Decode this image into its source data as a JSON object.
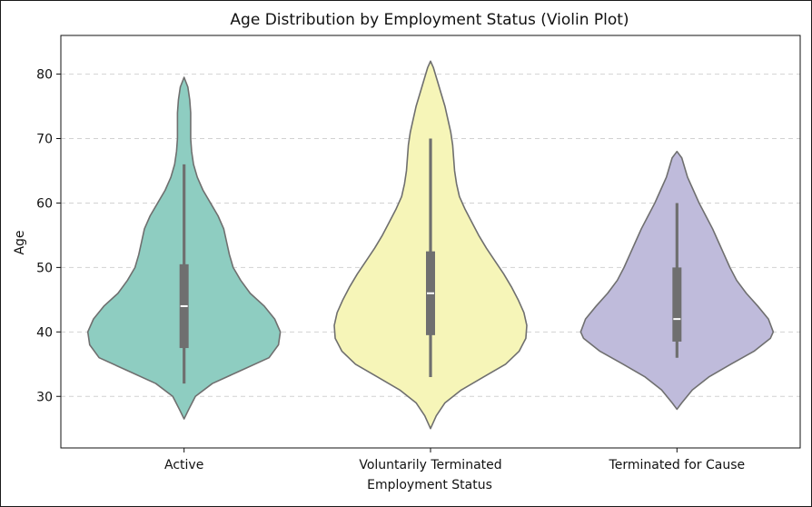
{
  "chart_data": {
    "type": "violin",
    "title": "Age Distribution by Employment Status (Violin Plot)",
    "xlabel": "Employment Status",
    "ylabel": "Age",
    "ylim": [
      22,
      86
    ],
    "y_ticks": [
      30,
      40,
      50,
      60,
      70,
      80
    ],
    "grid": "y-dashed",
    "categories": [
      "Active",
      "Voluntarily Terminated",
      "Terminated for Cause"
    ],
    "colors": [
      "#8ecdc1",
      "#f6f5b8",
      "#bfbbdb"
    ],
    "series": [
      {
        "min": 26.5,
        "max": 79.5,
        "whisker_low": 32,
        "whisker_high": 66,
        "q1": 37.5,
        "median": 44,
        "q3": 50.5,
        "density": [
          [
            26.5,
            0.0
          ],
          [
            28,
            0.05
          ],
          [
            30,
            0.12
          ],
          [
            32,
            0.3
          ],
          [
            34,
            0.6
          ],
          [
            36,
            0.9
          ],
          [
            38,
            1.0
          ],
          [
            40,
            1.02
          ],
          [
            42,
            0.96
          ],
          [
            44,
            0.85
          ],
          [
            46,
            0.7
          ],
          [
            48,
            0.6
          ],
          [
            50,
            0.52
          ],
          [
            52,
            0.48
          ],
          [
            54,
            0.45
          ],
          [
            56,
            0.42
          ],
          [
            58,
            0.36
          ],
          [
            60,
            0.28
          ],
          [
            62,
            0.2
          ],
          [
            64,
            0.14
          ],
          [
            66,
            0.1
          ],
          [
            68,
            0.08
          ],
          [
            70,
            0.07
          ],
          [
            72,
            0.07
          ],
          [
            74,
            0.07
          ],
          [
            76,
            0.06
          ],
          [
            78,
            0.04
          ],
          [
            79.5,
            0.0
          ]
        ]
      },
      {
        "min": 25,
        "max": 82,
        "whisker_low": 33,
        "whisker_high": 70,
        "q1": 39.5,
        "median": 46,
        "q3": 52.5,
        "density": [
          [
            25,
            0.0
          ],
          [
            27,
            0.06
          ],
          [
            29,
            0.15
          ],
          [
            31,
            0.32
          ],
          [
            33,
            0.55
          ],
          [
            35,
            0.78
          ],
          [
            37,
            0.92
          ],
          [
            39,
            0.99
          ],
          [
            41,
            1.0
          ],
          [
            43,
            0.97
          ],
          [
            45,
            0.91
          ],
          [
            47,
            0.84
          ],
          [
            49,
            0.76
          ],
          [
            51,
            0.67
          ],
          [
            53,
            0.58
          ],
          [
            55,
            0.5
          ],
          [
            57,
            0.43
          ],
          [
            59,
            0.36
          ],
          [
            61,
            0.3
          ],
          [
            63,
            0.27
          ],
          [
            65,
            0.25
          ],
          [
            67,
            0.24
          ],
          [
            69,
            0.23
          ],
          [
            71,
            0.21
          ],
          [
            73,
            0.18
          ],
          [
            75,
            0.15
          ],
          [
            77,
            0.11
          ],
          [
            79,
            0.07
          ],
          [
            81,
            0.03
          ],
          [
            82,
            0.0
          ]
        ]
      },
      {
        "min": 28,
        "max": 68,
        "whisker_low": 36,
        "whisker_high": 60,
        "q1": 38.5,
        "median": 42,
        "q3": 50,
        "density": [
          [
            28,
            0.0
          ],
          [
            29,
            0.05
          ],
          [
            31,
            0.16
          ],
          [
            33,
            0.33
          ],
          [
            35,
            0.56
          ],
          [
            37,
            0.8
          ],
          [
            39,
            0.97
          ],
          [
            40,
            1.0
          ],
          [
            42,
            0.95
          ],
          [
            44,
            0.84
          ],
          [
            46,
            0.72
          ],
          [
            48,
            0.62
          ],
          [
            50,
            0.55
          ],
          [
            52,
            0.49
          ],
          [
            54,
            0.43
          ],
          [
            56,
            0.37
          ],
          [
            58,
            0.3
          ],
          [
            60,
            0.23
          ],
          [
            62,
            0.17
          ],
          [
            64,
            0.11
          ],
          [
            66,
            0.07
          ],
          [
            67,
            0.05
          ],
          [
            68,
            0.0
          ]
        ]
      }
    ]
  }
}
